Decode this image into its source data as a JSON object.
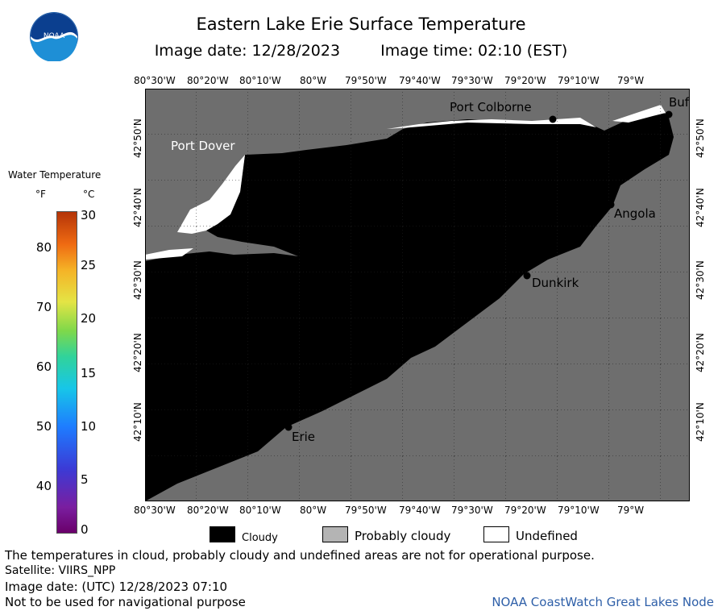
{
  "header": {
    "title": "Eastern Lake Erie Surface Temperature",
    "image_date": "Image date: 12/28/2023",
    "image_time": "Image time: 02:10 (EST)"
  },
  "logo": {
    "text": "NOAA",
    "icon": "noaa-logo-icon"
  },
  "legend": {
    "title": "Water Temperature",
    "unit_f": "°F",
    "unit_c": "°C",
    "f_ticks": [
      "80",
      "70",
      "60",
      "50",
      "40"
    ],
    "c_ticks": [
      "30",
      "25",
      "20",
      "15",
      "10",
      "5",
      "0"
    ]
  },
  "map": {
    "lon_labels": [
      "80°30'W",
      "80°20'W",
      "80°10'W",
      "80°W",
      "79°50'W",
      "79°40'W",
      "79°30'W",
      "79°20'W",
      "79°10'W",
      "79°W"
    ],
    "lat_labels": [
      "42°50'N",
      "42°40'N",
      "42°30'N",
      "42°20'N",
      "42°10'N"
    ],
    "places": [
      "Port Colborne",
      "Port Dover",
      "Angola",
      "Dunkirk",
      "Erie",
      "Buf"
    ],
    "colors": {
      "cloudy": "#000000",
      "probably_cloudy": "#6e6e6e",
      "undefined": "#ffffff"
    }
  },
  "map_legend": {
    "cloudy": "Cloudy",
    "probably_cloudy": "Probably cloudy",
    "undefined": "Undefined"
  },
  "footer": {
    "note": "The temperatures in cloud, probably cloudy and undefined areas are not for operational purpose.",
    "satellite": "Satellite: VIIRS_NPP",
    "utc_date": "Image date: (UTC) 12/28/2023  07:10",
    "nav_warning": "Not to be used for navigational purpose",
    "credit": "NOAA CoastWatch Great Lakes Node"
  }
}
